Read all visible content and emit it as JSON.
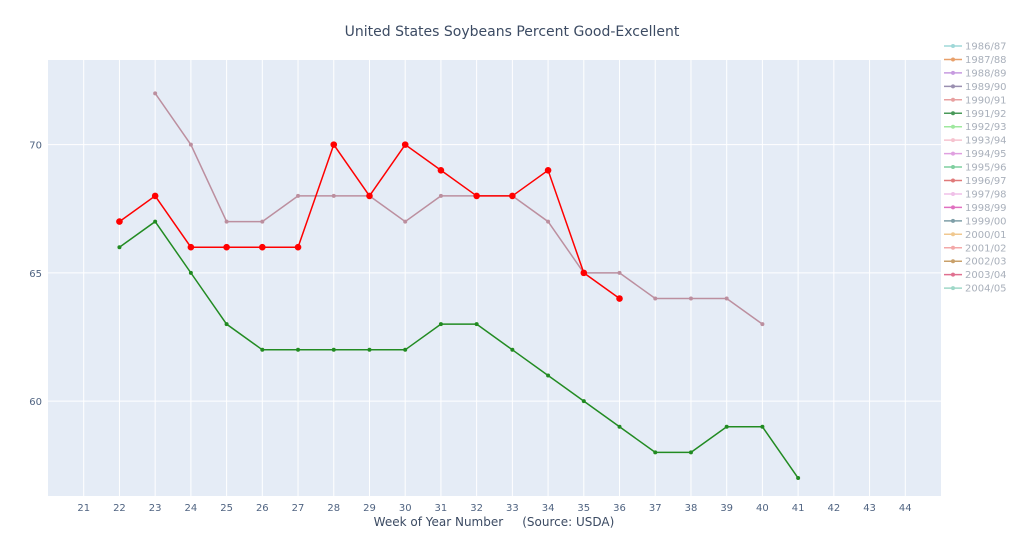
{
  "chart_data": {
    "type": "line",
    "title": "United States Soybeans Percent Good-Excellent",
    "xlabel": "Week of Year Number     (Source: USDA)",
    "ylabel": "",
    "xlim": [
      20,
      45
    ],
    "ylim": [
      56.3,
      73.3
    ],
    "x_ticks": [
      21,
      22,
      23,
      24,
      25,
      26,
      27,
      28,
      29,
      30,
      31,
      32,
      33,
      34,
      35,
      36,
      37,
      38,
      39,
      40,
      41,
      42,
      43,
      44
    ],
    "y_ticks": [
      60,
      65,
      70
    ],
    "grid": true,
    "legend_position": "right",
    "legend": [
      {
        "name": "1986/87",
        "color": "#9fd8d8"
      },
      {
        "name": "1987/88",
        "color": "#e8a06a"
      },
      {
        "name": "1988/89",
        "color": "#c79be0"
      },
      {
        "name": "1989/90",
        "color": "#9a8fb0"
      },
      {
        "name": "1990/91",
        "color": "#e8a0a0"
      },
      {
        "name": "1991/92",
        "color": "#4a9a5a"
      },
      {
        "name": "1992/93",
        "color": "#9ee89e"
      },
      {
        "name": "1993/94",
        "color": "#f6c3cf"
      },
      {
        "name": "1994/95",
        "color": "#e0a0e0"
      },
      {
        "name": "1995/96",
        "color": "#7fcf9f"
      },
      {
        "name": "1996/97",
        "color": "#e07a7a"
      },
      {
        "name": "1997/98",
        "color": "#f0c0e8"
      },
      {
        "name": "1998/99",
        "color": "#e070c0"
      },
      {
        "name": "1999/00",
        "color": "#7f9fa8"
      },
      {
        "name": "2000/01",
        "color": "#f0c890"
      },
      {
        "name": "2001/02",
        "color": "#f3a8a8"
      },
      {
        "name": "2002/03",
        "color": "#c9a06a"
      },
      {
        "name": "2003/04",
        "color": "#e07090"
      },
      {
        "name": "2004/05",
        "color": "#9fd8c8"
      }
    ],
    "series": [
      {
        "color": "#bc8f9f",
        "x": [
          23,
          24,
          25,
          26,
          27,
          28,
          29,
          30,
          31,
          32,
          33,
          34,
          35,
          36,
          37,
          38,
          39,
          40
        ],
        "y": [
          72,
          70,
          67,
          67,
          68,
          68,
          68,
          67,
          68,
          68,
          68,
          67,
          65,
          65,
          64,
          64,
          64,
          63
        ],
        "marker": "small"
      },
      {
        "color": "#228b22",
        "x": [
          22,
          23,
          24,
          25,
          26,
          27,
          28,
          29,
          30,
          31,
          32,
          33,
          34,
          35,
          36,
          37,
          38,
          39,
          40,
          41
        ],
        "y": [
          66,
          67,
          65,
          63,
          62,
          62,
          62,
          62,
          62,
          63,
          63,
          62,
          61,
          60,
          59,
          58,
          58,
          59,
          59,
          57
        ],
        "marker": "small"
      },
      {
        "color": "#ff0000",
        "x": [
          22,
          23,
          24,
          25,
          26,
          27,
          28,
          29,
          30,
          31,
          32,
          33,
          34,
          35,
          36
        ],
        "y": [
          67,
          68,
          66,
          66,
          66,
          66,
          70,
          68,
          70,
          69,
          68,
          68,
          69,
          65,
          64
        ],
        "marker": "large"
      }
    ]
  }
}
